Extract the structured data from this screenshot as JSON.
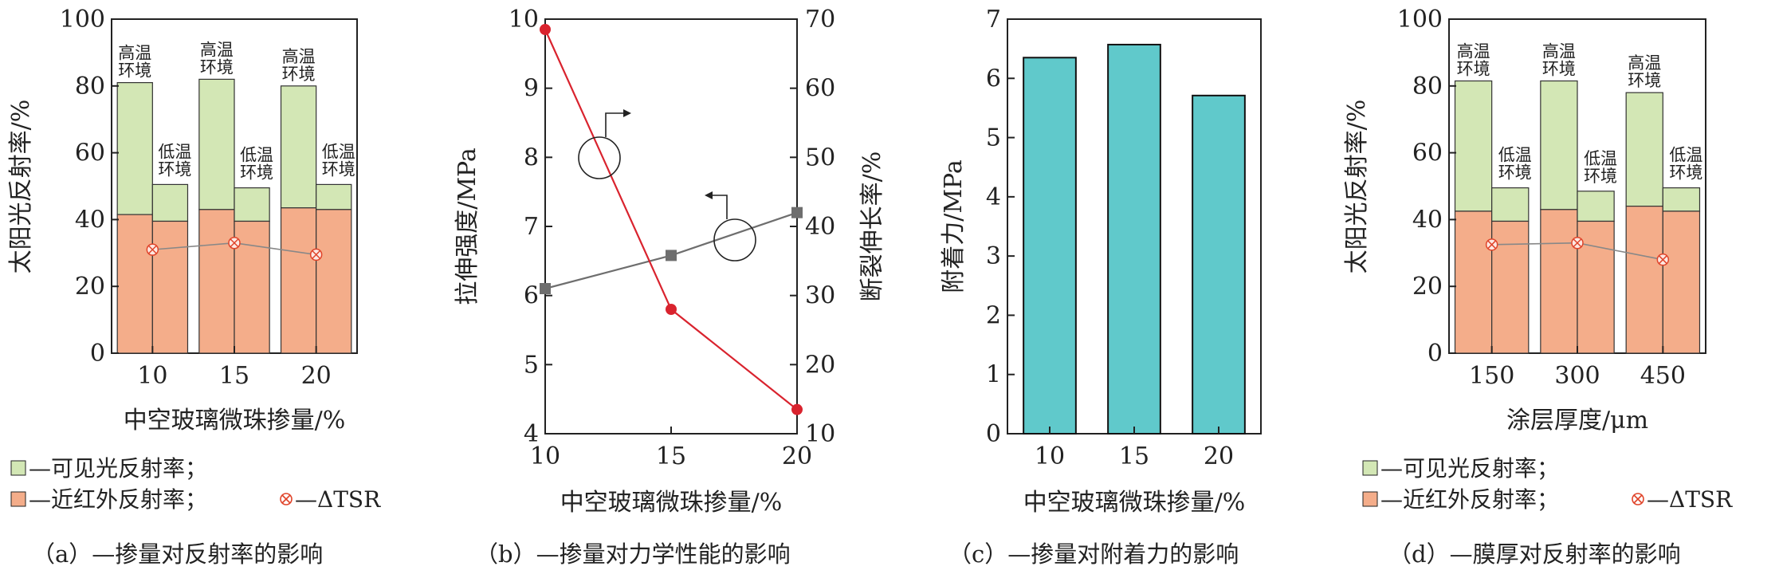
{
  "chart_data": [
    {
      "type": "bar",
      "id": "a",
      "caption": "（a）—掺量对反射率的影响",
      "categories": [
        "10",
        "15",
        "20"
      ],
      "series": [
        {
          "name": "可见光反射率",
          "role": "visible",
          "values": [
            81,
            82,
            80
          ]
        },
        {
          "name": "近红外反射率",
          "role": "nir",
          "values": [
            41.5,
            43,
            43.5
          ]
        },
        {
          "name": "可见光反射率",
          "role": "visible-low",
          "values": [
            50.5,
            49.5,
            50.5
          ]
        },
        {
          "name": "近红外反射率",
          "role": "nir-low",
          "values": [
            39.5,
            39.5,
            43
          ]
        }
      ],
      "delta_tsr": [
        31,
        33,
        29.5
      ],
      "high_label": [
        "高温",
        "环境"
      ],
      "low_label": [
        "低温",
        "环境"
      ],
      "xlabel": "中空玻璃微珠掺量/%",
      "ylabel": "太阳光反射率/%",
      "ylim": [
        0,
        100
      ],
      "yticks": [
        "0",
        "20",
        "40",
        "60",
        "80",
        "100"
      ]
    },
    {
      "type": "line",
      "id": "b",
      "caption": "（b）—掺量对力学性能的影响",
      "x": [
        10,
        15,
        20
      ],
      "xticks": [
        "10",
        "15",
        "20"
      ],
      "xlim": [
        10,
        20
      ],
      "series": [
        {
          "name": "拉伸强度",
          "axis": "left",
          "values": [
            6.1,
            6.58,
            7.2
          ],
          "color": "#6e6e6e"
        },
        {
          "name": "断裂伸长率",
          "axis": "right",
          "values": [
            68.5,
            28,
            13.5
          ],
          "color": "#d9232e"
        }
      ],
      "xlabel": "中空玻璃微珠掺量/%",
      "ylabel_left": "拉伸强度/MPa",
      "ylabel_right": "断裂伸长率/%",
      "ylim_left": [
        4,
        10
      ],
      "ylim_right": [
        10,
        70
      ],
      "yticks_left": [
        "4",
        "5",
        "6",
        "7",
        "8",
        "9",
        "10"
      ],
      "yticks_right": [
        "10",
        "20",
        "30",
        "40",
        "50",
        "60",
        "70"
      ]
    },
    {
      "type": "bar",
      "id": "c",
      "caption": "（c）—掺量对附着力的影响",
      "categories": [
        "10",
        "15",
        "20"
      ],
      "values": [
        6.35,
        6.57,
        5.71
      ],
      "color": "#60c9cb",
      "xlabel": "中空玻璃微珠掺量/%",
      "ylabel": "附着力/MPa",
      "ylim": [
        0,
        7
      ],
      "yticks": [
        "0",
        "1",
        "2",
        "3",
        "4",
        "5",
        "6",
        "7"
      ]
    },
    {
      "type": "bar",
      "id": "d",
      "caption": "（d）—膜厚对反射率的影响",
      "categories": [
        "150",
        "300",
        "450"
      ],
      "series": [
        {
          "name": "可见光反射率",
          "role": "visible",
          "values": [
            81.5,
            81.5,
            78
          ]
        },
        {
          "name": "近红外反射率",
          "role": "nir",
          "values": [
            42.5,
            43,
            44
          ]
        },
        {
          "name": "可见光反射率",
          "role": "visible-low",
          "values": [
            49.5,
            48.5,
            49.5
          ]
        },
        {
          "name": "近红外反射率",
          "role": "nir-low",
          "values": [
            39.5,
            39.5,
            42.5
          ]
        }
      ],
      "delta_tsr": [
        32.5,
        33,
        28
      ],
      "high_label": [
        "高温",
        "环境"
      ],
      "low_label": [
        "低温",
        "环境"
      ],
      "xlabel": "涂层厚度/μm",
      "ylabel": "太阳光反射率/%",
      "ylim": [
        0,
        100
      ],
      "yticks": [
        "0",
        "20",
        "40",
        "60",
        "80",
        "100"
      ]
    }
  ],
  "legend": {
    "visible": "—可见光反射率；",
    "nir": "—近红外反射率；",
    "tsr": "—ΔTSR"
  },
  "colors": {
    "visible": "#d3e7b5",
    "nir": "#f4ad8a",
    "tsr_line": "#888888",
    "tsr_marker": "#e0442a",
    "bar_c": "#60c9cb",
    "tensile": "#6e6e6e",
    "elong": "#d9232e"
  }
}
